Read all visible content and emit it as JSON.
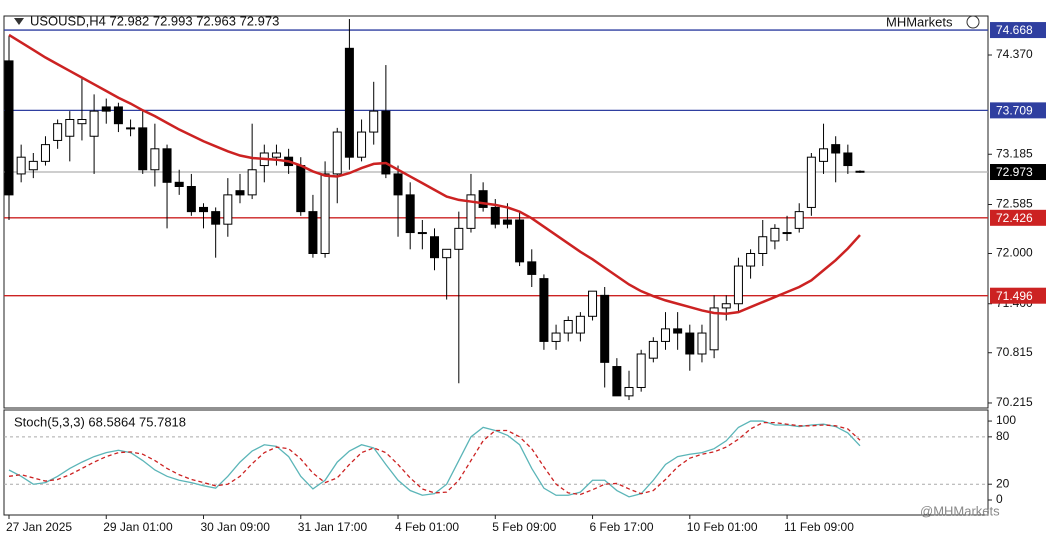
{
  "chart_data": [
    {
      "type": "candlestick",
      "title": "USOUSD,H4  72.982 72.993 72.963 72.973",
      "logo": "MHMarkets",
      "watermark": "@MHMarkets",
      "categories": [
        "27 Jan 2025",
        null,
        null,
        null,
        null,
        null,
        null,
        null,
        "29 Jan 01:00",
        null,
        null,
        null,
        null,
        null,
        null,
        null,
        "30 Jan 09:00",
        null,
        null,
        null,
        null,
        null,
        null,
        null,
        "31 Jan 17:00",
        null,
        null,
        null,
        null,
        null,
        null,
        null,
        "4 Feb 01:00",
        null,
        null,
        null,
        null,
        null,
        null,
        null,
        "5 Feb 09:00",
        null,
        null,
        null,
        null,
        null,
        null,
        null,
        "6 Feb 17:00",
        null,
        null,
        null,
        null,
        null,
        null,
        null,
        "10 Feb 01:00",
        null,
        null,
        null,
        null,
        null,
        null,
        null,
        "11 Feb 09:00",
        null,
        null,
        null,
        null,
        null,
        null
      ],
      "open": [
        74.3,
        72.95,
        73.0,
        73.1,
        73.35,
        73.4,
        73.55,
        73.4,
        73.75,
        73.75,
        73.5,
        73.5,
        73.0,
        73.25,
        72.85,
        72.8,
        72.55,
        72.5,
        72.35,
        72.75,
        72.7,
        73.05,
        73.15,
        73.15,
        73.05,
        72.5,
        72.0,
        72.95,
        74.45,
        73.15,
        73.45,
        73.7,
        72.95,
        72.7,
        72.25,
        72.2,
        71.95,
        72.05,
        72.3,
        72.75,
        72.55,
        72.4,
        72.4,
        71.9,
        71.7,
        70.95,
        71.05,
        71.05,
        71.25,
        71.5,
        70.65,
        70.3,
        70.4,
        70.75,
        70.95,
        71.1,
        71.05,
        70.8,
        70.85,
        71.35,
        71.4,
        71.85,
        72.0,
        72.15,
        72.25,
        72.3,
        72.55,
        73.1,
        73.3,
        73.2,
        72.982
      ],
      "high": [
        74.6,
        73.3,
        73.2,
        73.4,
        73.6,
        73.7,
        74.1,
        73.9,
        73.85,
        73.8,
        73.6,
        73.7,
        73.55,
        73.3,
        73.0,
        72.95,
        72.6,
        72.55,
        72.9,
        72.95,
        73.55,
        73.3,
        73.3,
        73.25,
        73.15,
        72.7,
        73.1,
        73.5,
        74.8,
        73.6,
        74.05,
        74.25,
        73.05,
        72.85,
        72.4,
        72.3,
        72.05,
        72.5,
        72.95,
        72.85,
        72.65,
        72.6,
        72.5,
        72.05,
        71.75,
        71.15,
        71.25,
        71.3,
        71.55,
        71.6,
        70.75,
        70.6,
        70.85,
        71.0,
        71.3,
        71.3,
        71.15,
        71.15,
        71.5,
        71.5,
        71.95,
        72.05,
        72.4,
        72.35,
        72.45,
        72.6,
        73.2,
        73.55,
        73.4,
        73.3,
        72.993
      ],
      "low": [
        72.4,
        72.85,
        72.9,
        73.05,
        73.25,
        73.1,
        73.35,
        72.95,
        73.55,
        73.45,
        73.4,
        72.95,
        72.8,
        72.3,
        72.7,
        72.45,
        72.3,
        71.95,
        72.2,
        72.6,
        72.65,
        72.85,
        73.05,
        72.95,
        72.45,
        71.95,
        71.95,
        72.6,
        73.0,
        73.1,
        73.3,
        72.9,
        72.2,
        72.05,
        72.05,
        71.8,
        71.45,
        70.45,
        72.25,
        72.5,
        72.3,
        72.3,
        71.85,
        71.6,
        70.85,
        70.85,
        70.95,
        70.95,
        71.2,
        70.4,
        70.3,
        70.25,
        70.35,
        70.7,
        70.85,
        70.85,
        70.6,
        70.7,
        70.75,
        71.2,
        71.3,
        71.7,
        71.85,
        72.05,
        72.15,
        72.25,
        72.45,
        72.95,
        72.85,
        72.95,
        72.963
      ],
      "close": [
        72.7,
        73.15,
        73.1,
        73.3,
        73.55,
        73.6,
        73.6,
        73.7,
        73.7,
        73.55,
        73.5,
        73.0,
        73.25,
        72.85,
        72.8,
        72.5,
        72.5,
        72.35,
        72.7,
        72.7,
        73.0,
        73.2,
        73.2,
        73.05,
        72.5,
        72.0,
        72.95,
        73.45,
        73.15,
        73.45,
        73.7,
        72.95,
        72.7,
        72.25,
        72.25,
        71.95,
        72.05,
        72.3,
        72.7,
        72.55,
        72.35,
        72.35,
        71.9,
        71.75,
        70.95,
        71.05,
        71.2,
        71.25,
        71.55,
        70.7,
        70.3,
        70.4,
        70.8,
        70.95,
        71.1,
        71.05,
        70.8,
        71.05,
        71.35,
        71.4,
        71.85,
        72.0,
        72.2,
        72.3,
        72.25,
        72.5,
        73.15,
        73.25,
        73.2,
        73.05,
        72.973
      ],
      "up_color": "#ffffff",
      "down_color": "#000000",
      "ma": {
        "color": "#cc2222",
        "values": [
          74.61,
          74.52,
          74.43,
          74.34,
          74.26,
          74.18,
          74.1,
          74.02,
          73.94,
          73.86,
          73.79,
          73.71,
          73.64,
          73.56,
          73.48,
          73.41,
          73.34,
          73.28,
          73.22,
          73.17,
          73.14,
          73.13,
          73.12,
          73.1,
          73.05,
          72.98,
          72.93,
          72.92,
          72.96,
          73.02,
          73.07,
          73.08,
          73.0,
          72.92,
          72.84,
          72.76,
          72.68,
          72.64,
          72.62,
          72.6,
          72.58,
          72.55,
          72.5,
          72.42,
          72.32,
          72.22,
          72.12,
          72.02,
          71.93,
          71.83,
          71.73,
          71.63,
          71.55,
          71.49,
          71.44,
          71.4,
          71.36,
          71.32,
          71.29,
          71.28,
          71.3,
          71.36,
          71.42,
          71.48,
          71.54,
          71.6,
          71.68,
          71.8,
          71.92,
          72.06,
          72.22
        ]
      },
      "levels": [
        {
          "value": 74.668,
          "color": "#2f3fa0",
          "line_color": "#2f3fa0"
        },
        {
          "value": 73.709,
          "color": "#2f3fa0",
          "line_color": "#2f3fa0"
        },
        {
          "value": 72.973,
          "color": "#000000",
          "line_color": "#b0b0b0"
        },
        {
          "value": 72.426,
          "color": "#cc2222",
          "line_color": "#cc2222"
        },
        {
          "value": 71.496,
          "color": "#cc2222",
          "line_color": "#cc2222"
        }
      ],
      "ylim": [
        70.155,
        74.812
      ],
      "yticks": [
        {
          "value": 74.37,
          "label": "74.370"
        },
        73.185,
        72.585,
        {
          "value": 72,
          "label": "72.000"
        },
        {
          "value": 71.4,
          "label": "71.400"
        },
        70.815,
        70.215
      ]
    },
    {
      "type": "stochastic",
      "title": "Stoch(5,3,3) 68.5864 75.7818",
      "series": [
        {
          "color": "#5bb5b8",
          "dashed": false,
          "values": [
            38,
            30,
            20,
            22,
            30,
            40,
            48,
            55,
            60,
            63,
            60,
            50,
            38,
            30,
            25,
            22,
            18,
            15,
            30,
            48,
            62,
            70,
            68,
            55,
            30,
            14,
            25,
            48,
            62,
            70,
            66,
            45,
            25,
            12,
            6,
            8,
            20,
            50,
            80,
            92,
            88,
            82,
            70,
            40,
            15,
            6,
            6,
            10,
            25,
            25,
            12,
            4,
            8,
            25,
            45,
            55,
            58,
            60,
            65,
            75,
            92,
            100,
            100,
            95,
            95,
            93,
            95,
            96,
            93,
            85,
            68.5864
          ]
        },
        {
          "color": "#cc2222",
          "dashed": true,
          "values": [
            30,
            32,
            28,
            24,
            26,
            32,
            40,
            48,
            55,
            60,
            61,
            58,
            50,
            40,
            32,
            26,
            22,
            18,
            20,
            30,
            46,
            60,
            67,
            65,
            52,
            34,
            22,
            28,
            45,
            60,
            66,
            60,
            45,
            28,
            14,
            9,
            10,
            25,
            50,
            75,
            88,
            88,
            80,
            65,
            42,
            20,
            9,
            7,
            13,
            20,
            21,
            14,
            8,
            12,
            26,
            42,
            53,
            58,
            61,
            67,
            77,
            90,
            98,
            98,
            96,
            94,
            94,
            95,
            94,
            90,
            75.7818
          ]
        }
      ],
      "levels": [
        20,
        80
      ],
      "ylim": [
        -19,
        114
      ],
      "yticks": [
        0,
        20,
        80,
        100
      ]
    }
  ]
}
